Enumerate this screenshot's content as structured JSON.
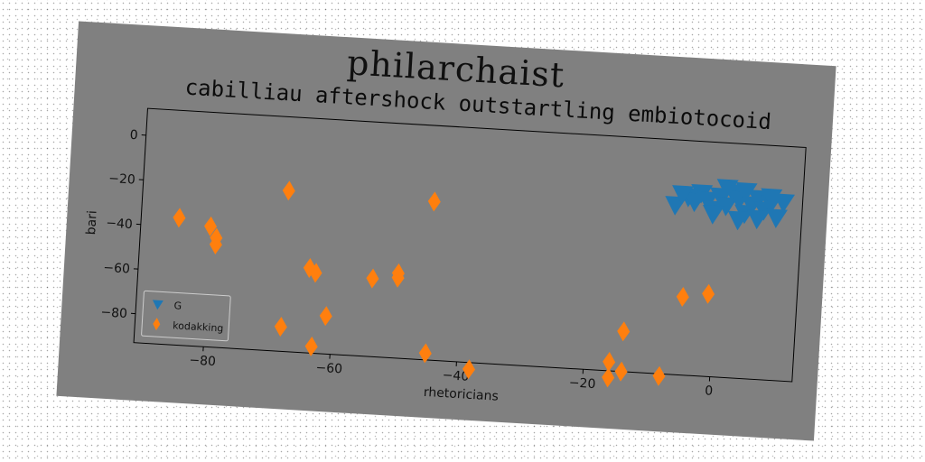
{
  "suptitle": "philarchaist",
  "chart_data": {
    "type": "scatter",
    "title": "cabilliau aftershock outstartling embiotocoid",
    "xlabel": "rhetoricians",
    "ylabel": "bari",
    "xlim": [
      -91,
      13
    ],
    "ylim": [
      -93,
      12
    ],
    "xticks": [
      -80,
      -60,
      -40,
      -20,
      0
    ],
    "yticks": [
      0,
      -20,
      -40,
      -60,
      -80
    ],
    "grid": false,
    "legend_position": "lower-left",
    "series": [
      {
        "name": "G",
        "marker": "triangle-down",
        "color": "#1f77b4",
        "points": [
          [
            -7,
            -17
          ],
          [
            -5,
            -13
          ],
          [
            -4,
            -15
          ],
          [
            -3,
            -11
          ],
          [
            -2,
            -14
          ],
          [
            -1,
            -18
          ],
          [
            0,
            -12
          ],
          [
            1,
            -16
          ],
          [
            2,
            -10
          ],
          [
            3,
            -13
          ],
          [
            4,
            -19
          ],
          [
            5,
            -15
          ],
          [
            6,
            -12
          ],
          [
            7,
            -17
          ],
          [
            8,
            -14
          ],
          [
            9,
            -20
          ],
          [
            10,
            -13
          ],
          [
            -6,
            -12
          ],
          [
            1,
            -8
          ],
          [
            3,
            -22
          ],
          [
            6,
            -21
          ],
          [
            -1,
            -20
          ],
          [
            8,
            -11
          ],
          [
            4,
            -9
          ]
        ]
      },
      {
        "name": "kodakking",
        "marker": "diamond",
        "color": "#ff7f0e",
        "points": [
          [
            -85,
            -36
          ],
          [
            -80,
            -39
          ],
          [
            -79,
            -44
          ],
          [
            -79,
            -47
          ],
          [
            -68,
            -21
          ],
          [
            -68,
            -82
          ],
          [
            -64,
            -55
          ],
          [
            -63,
            -57
          ],
          [
            -63,
            -90
          ],
          [
            -61,
            -76
          ],
          [
            -54,
            -58
          ],
          [
            -50,
            -55
          ],
          [
            -50,
            -57
          ],
          [
            -45,
            -22
          ],
          [
            -45,
            -90
          ],
          [
            -38,
            -96
          ],
          [
            -16,
            -89
          ],
          [
            -16,
            -96
          ],
          [
            -14,
            -75
          ],
          [
            -14,
            -93
          ],
          [
            -8,
            -94
          ],
          [
            -5,
            -58
          ],
          [
            -1,
            -56
          ]
        ]
      }
    ]
  }
}
